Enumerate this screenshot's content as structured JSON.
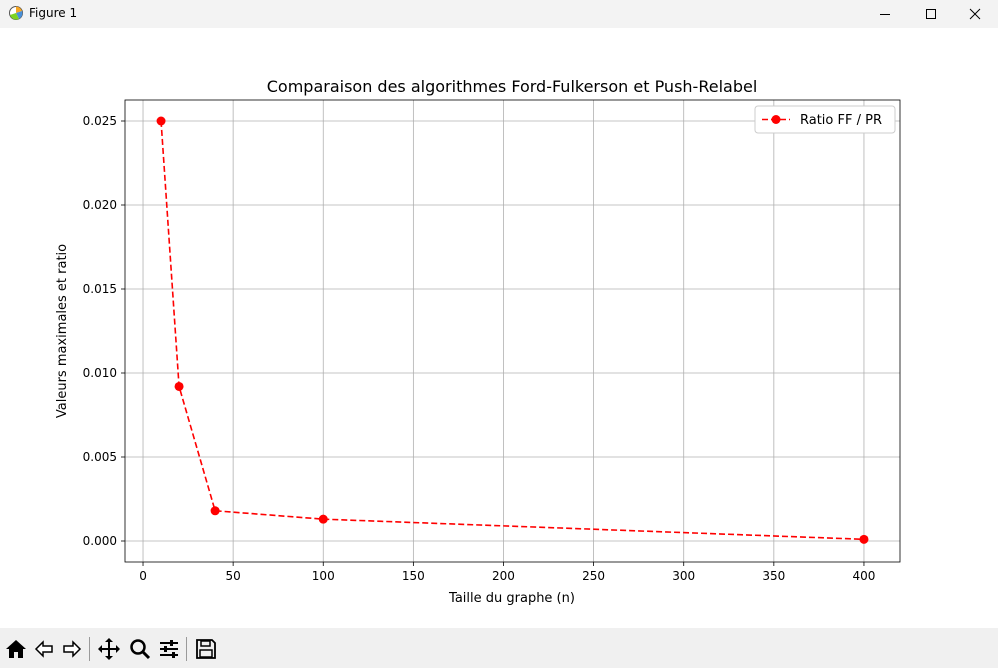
{
  "window": {
    "title": "Figure 1"
  },
  "toolbar": {
    "buttons": [
      "home-icon",
      "back-arrow-icon",
      "forward-arrow-icon",
      "pan-move-icon",
      "zoom-magnifier-icon",
      "configure-subplots-icon",
      "save-floppy-icon"
    ]
  },
  "chart_data": {
    "type": "line",
    "title": "Comparaison des algorithmes Ford-Fulkerson et Push-Relabel",
    "xlabel": "Taille du graphe (n)",
    "ylabel": "Valeurs maximales et ratio",
    "xlim": [
      -10,
      420
    ],
    "ylim": [
      -0.00125,
      0.02625
    ],
    "xticks": [
      0,
      50,
      100,
      150,
      200,
      250,
      300,
      350,
      400
    ],
    "xtick_labels": [
      "0",
      "50",
      "100",
      "150",
      "200",
      "250",
      "300",
      "350",
      "400"
    ],
    "yticks": [
      0.0,
      0.005,
      0.01,
      0.015,
      0.02,
      0.025
    ],
    "ytick_labels": [
      "0.000",
      "0.005",
      "0.010",
      "0.015",
      "0.020",
      "0.025"
    ],
    "grid": true,
    "legend_position": "top-right",
    "series": [
      {
        "name": "Ratio FF / PR",
        "color": "#ff0000",
        "linestyle": "dashed",
        "marker": "circle",
        "x": [
          10,
          20,
          40,
          100,
          400
        ],
        "y": [
          0.025,
          0.0092,
          0.0018,
          0.0013,
          0.0001
        ]
      }
    ]
  }
}
